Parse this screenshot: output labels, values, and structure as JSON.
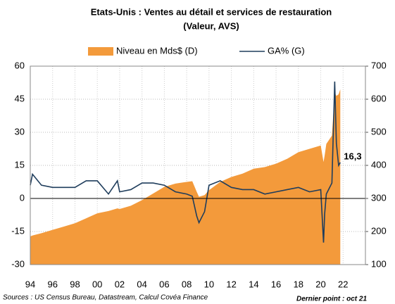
{
  "chart_data": {
    "type": "line",
    "title": "Etats-Unis : Ventes au détail et services de restauration",
    "subtitle": "(Valeur, AVS)",
    "source": "Sources : US Census Bureau, Datastream, Calcul Covéa Finance",
    "last_point": "Dernier point : oct 21",
    "x": [
      1994,
      1994.2,
      1995,
      1996,
      1997,
      1998,
      1999,
      2000,
      2001,
      2001.8,
      2002,
      2003,
      2004,
      2005,
      2006,
      2007,
      2008,
      2008.5,
      2008.9,
      2009.1,
      2009.6,
      2010,
      2011,
      2012,
      2013,
      2014,
      2015,
      2016,
      2017,
      2018,
      2019,
      2020,
      2020.25,
      2020.35,
      2020.5,
      2021,
      2021.25,
      2021.4,
      2021.6,
      2021.75
    ],
    "series": [
      {
        "name": "Niveau en Mds$ (D)",
        "type": "area",
        "axis": "y2",
        "color": "#f39a3b",
        "values": [
          185,
          188,
          195,
          205,
          215,
          225,
          240,
          255,
          262,
          270,
          268,
          278,
          295,
          315,
          335,
          345,
          350,
          352,
          320,
          305,
          310,
          325,
          350,
          365,
          375,
          390,
          395,
          405,
          420,
          440,
          450,
          460,
          410,
          430,
          465,
          490,
          620,
          610,
          615,
          630
        ]
      },
      {
        "name": "GA% (G)",
        "type": "line",
        "color": "#1f3d5c",
        "values": [
          6,
          11,
          6,
          5,
          5,
          5,
          8,
          8,
          2,
          8,
          3,
          4,
          7,
          7,
          6,
          3,
          2,
          1,
          -8,
          -11,
          -6,
          6,
          8,
          5,
          4,
          4,
          2,
          3,
          4,
          5,
          3,
          4,
          -20,
          -7,
          2,
          7,
          53,
          25,
          15,
          16.3
        ],
        "value_labels": [
          null,
          null,
          null,
          null,
          null,
          null,
          null,
          null,
          null,
          null,
          null,
          null,
          null,
          null,
          null,
          null,
          null,
          null,
          null,
          null,
          null,
          null,
          null,
          null,
          null,
          null,
          null,
          null,
          null,
          null,
          null,
          null,
          null,
          null,
          null,
          null,
          null,
          null,
          null,
          "16,3"
        ]
      }
    ],
    "xlim": [
      1994,
      2024
    ],
    "xticks": [
      {
        "value": 1994,
        "label": "94"
      },
      {
        "value": 1996,
        "label": "96"
      },
      {
        "value": 1998,
        "label": "98"
      },
      {
        "value": 2000,
        "label": "00"
      },
      {
        "value": 2002,
        "label": "02"
      },
      {
        "value": 2004,
        "label": "04"
      },
      {
        "value": 2006,
        "label": "06"
      },
      {
        "value": 2008,
        "label": "08"
      },
      {
        "value": 2010,
        "label": "10"
      },
      {
        "value": 2012,
        "label": "12"
      },
      {
        "value": 2014,
        "label": "14"
      },
      {
        "value": 2016,
        "label": "16"
      },
      {
        "value": 2018,
        "label": "18"
      },
      {
        "value": 2020,
        "label": "20"
      },
      {
        "value": 2022,
        "label": "22"
      }
    ],
    "ylim": [
      -30,
      60
    ],
    "yticks": [
      -30,
      -15,
      0,
      15,
      30,
      45,
      60
    ],
    "y2lim": [
      100,
      700
    ],
    "y2ticks": [
      100,
      200,
      300,
      400,
      500,
      600,
      700
    ],
    "grid": true
  }
}
